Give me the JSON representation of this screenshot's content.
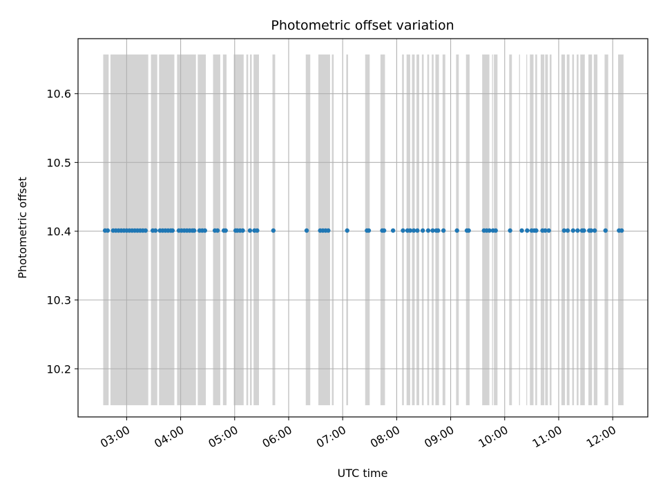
{
  "chart_data": {
    "type": "scatter",
    "title": "Photometric offset variation",
    "xlabel": "UTC time",
    "ylabel": "Photometric offset",
    "xlim": [
      "02:06",
      "12:39"
    ],
    "ylim": [
      10.13,
      10.68
    ],
    "grid": true,
    "x_ticks": [
      "03:00",
      "04:00",
      "05:00",
      "06:00",
      "07:00",
      "08:00",
      "09:00",
      "10:00",
      "11:00",
      "12:00"
    ],
    "y_ticks": [
      "10.2",
      "10.3",
      "10.4",
      "10.5",
      "10.6"
    ],
    "band_ylim": [
      10.147,
      10.657
    ],
    "bands": [
      [
        "02:34",
        "02:40"
      ],
      [
        "02:42",
        "03:24"
      ],
      [
        "03:27",
        "03:34"
      ],
      [
        "03:36",
        "03:53"
      ],
      [
        "03:56",
        "04:17"
      ],
      [
        "04:19",
        "04:28"
      ],
      [
        "04:36",
        "04:44"
      ],
      [
        "04:47",
        "04:51"
      ],
      [
        "04:59",
        "05:10"
      ],
      [
        "05:13",
        "05:15"
      ],
      [
        "05:17",
        "05:19"
      ],
      [
        "05:21",
        "05:27"
      ],
      [
        "05:42",
        "05:45"
      ],
      [
        "06:19",
        "06:24"
      ],
      [
        "06:33",
        "06:46"
      ],
      [
        "06:48",
        "06:50"
      ],
      [
        "07:04",
        "07:06"
      ],
      [
        "07:25",
        "07:30"
      ],
      [
        "07:42",
        "07:47"
      ],
      [
        "08:06",
        "08:08"
      ],
      [
        "08:11",
        "08:15"
      ],
      [
        "08:17",
        "08:20"
      ],
      [
        "08:22",
        "08:25"
      ],
      [
        "08:28",
        "08:30"
      ],
      [
        "08:34",
        "08:36"
      ],
      [
        "08:39",
        "08:41"
      ],
      [
        "08:43",
        "08:47"
      ],
      [
        "08:51",
        "08:54"
      ],
      [
        "09:06",
        "09:09"
      ],
      [
        "09:17",
        "09:21"
      ],
      [
        "09:35",
        "09:43"
      ],
      [
        "09:46",
        "09:47"
      ],
      [
        "09:48",
        "09:52"
      ],
      [
        "10:05",
        "10:08"
      ],
      [
        "10:16",
        "10:17"
      ],
      [
        "10:24",
        "10:25"
      ],
      [
        "10:28",
        "10:32"
      ],
      [
        "10:34",
        "10:36"
      ],
      [
        "10:40",
        "10:44"
      ],
      [
        "10:45",
        "10:48"
      ],
      [
        "10:50",
        "10:52"
      ],
      [
        "11:03",
        "11:07"
      ],
      [
        "11:09",
        "11:12"
      ],
      [
        "11:15",
        "11:17"
      ],
      [
        "11:20",
        "11:22"
      ],
      [
        "11:24",
        "11:29"
      ],
      [
        "11:33",
        "11:37"
      ],
      [
        "11:39",
        "11:43"
      ],
      [
        "11:51",
        "11:55"
      ],
      [
        "12:06",
        "12:12"
      ]
    ],
    "series": [
      {
        "color": "#1f77b4",
        "x": [
          "02:36",
          "02:39",
          "02:45",
          "02:48",
          "02:51",
          "02:54",
          "02:57",
          "03:00",
          "03:03",
          "03:06",
          "03:09",
          "03:12",
          "03:15",
          "03:18",
          "03:21",
          "03:29",
          "03:32",
          "03:37",
          "03:40",
          "03:43",
          "03:46",
          "03:49",
          "03:51",
          "03:58",
          "04:01",
          "04:04",
          "04:07",
          "04:10",
          "04:13",
          "04:15",
          "04:21",
          "04:24",
          "04:27",
          "04:38",
          "04:41",
          "04:48",
          "04:50",
          "05:01",
          "05:03",
          "05:06",
          "05:09",
          "05:17",
          "05:22",
          "05:25",
          "05:43",
          "06:20",
          "06:35",
          "06:38",
          "06:41",
          "06:44",
          "07:05",
          "07:27",
          "07:29",
          "07:44",
          "07:46",
          "07:56",
          "08:07",
          "08:12",
          "08:15",
          "08:19",
          "08:23",
          "08:29",
          "08:35",
          "08:40",
          "08:44",
          "08:46",
          "08:52",
          "09:07",
          "09:18",
          "09:20",
          "09:37",
          "09:40",
          "09:43",
          "09:47",
          "09:50",
          "10:06",
          "10:19",
          "10:25",
          "10:30",
          "10:33",
          "10:35",
          "10:42",
          "10:45",
          "10:49",
          "11:06",
          "11:10",
          "11:16",
          "11:21",
          "11:26",
          "11:28",
          "11:34",
          "11:36",
          "11:40",
          "11:52",
          "12:07",
          "12:10"
        ],
        "y": [
          10.401,
          10.401,
          10.401,
          10.401,
          10.401,
          10.401,
          10.401,
          10.401,
          10.401,
          10.401,
          10.401,
          10.401,
          10.401,
          10.401,
          10.401,
          10.401,
          10.401,
          10.401,
          10.401,
          10.401,
          10.401,
          10.401,
          10.401,
          10.401,
          10.401,
          10.401,
          10.401,
          10.401,
          10.401,
          10.401,
          10.401,
          10.401,
          10.401,
          10.401,
          10.401,
          10.401,
          10.401,
          10.401,
          10.401,
          10.401,
          10.401,
          10.401,
          10.401,
          10.401,
          10.401,
          10.401,
          10.401,
          10.401,
          10.401,
          10.401,
          10.401,
          10.401,
          10.401,
          10.401,
          10.401,
          10.401,
          10.401,
          10.401,
          10.401,
          10.401,
          10.401,
          10.401,
          10.401,
          10.401,
          10.401,
          10.401,
          10.401,
          10.401,
          10.401,
          10.401,
          10.401,
          10.401,
          10.401,
          10.401,
          10.401,
          10.401,
          10.401,
          10.401,
          10.401,
          10.401,
          10.401,
          10.401,
          10.401,
          10.401,
          10.401,
          10.401,
          10.401,
          10.401,
          10.401,
          10.401,
          10.401,
          10.401,
          10.401,
          10.401,
          10.401,
          10.401
        ]
      }
    ],
    "band_color": "#d3d3d3",
    "grid_color": "#b0b0b0"
  }
}
